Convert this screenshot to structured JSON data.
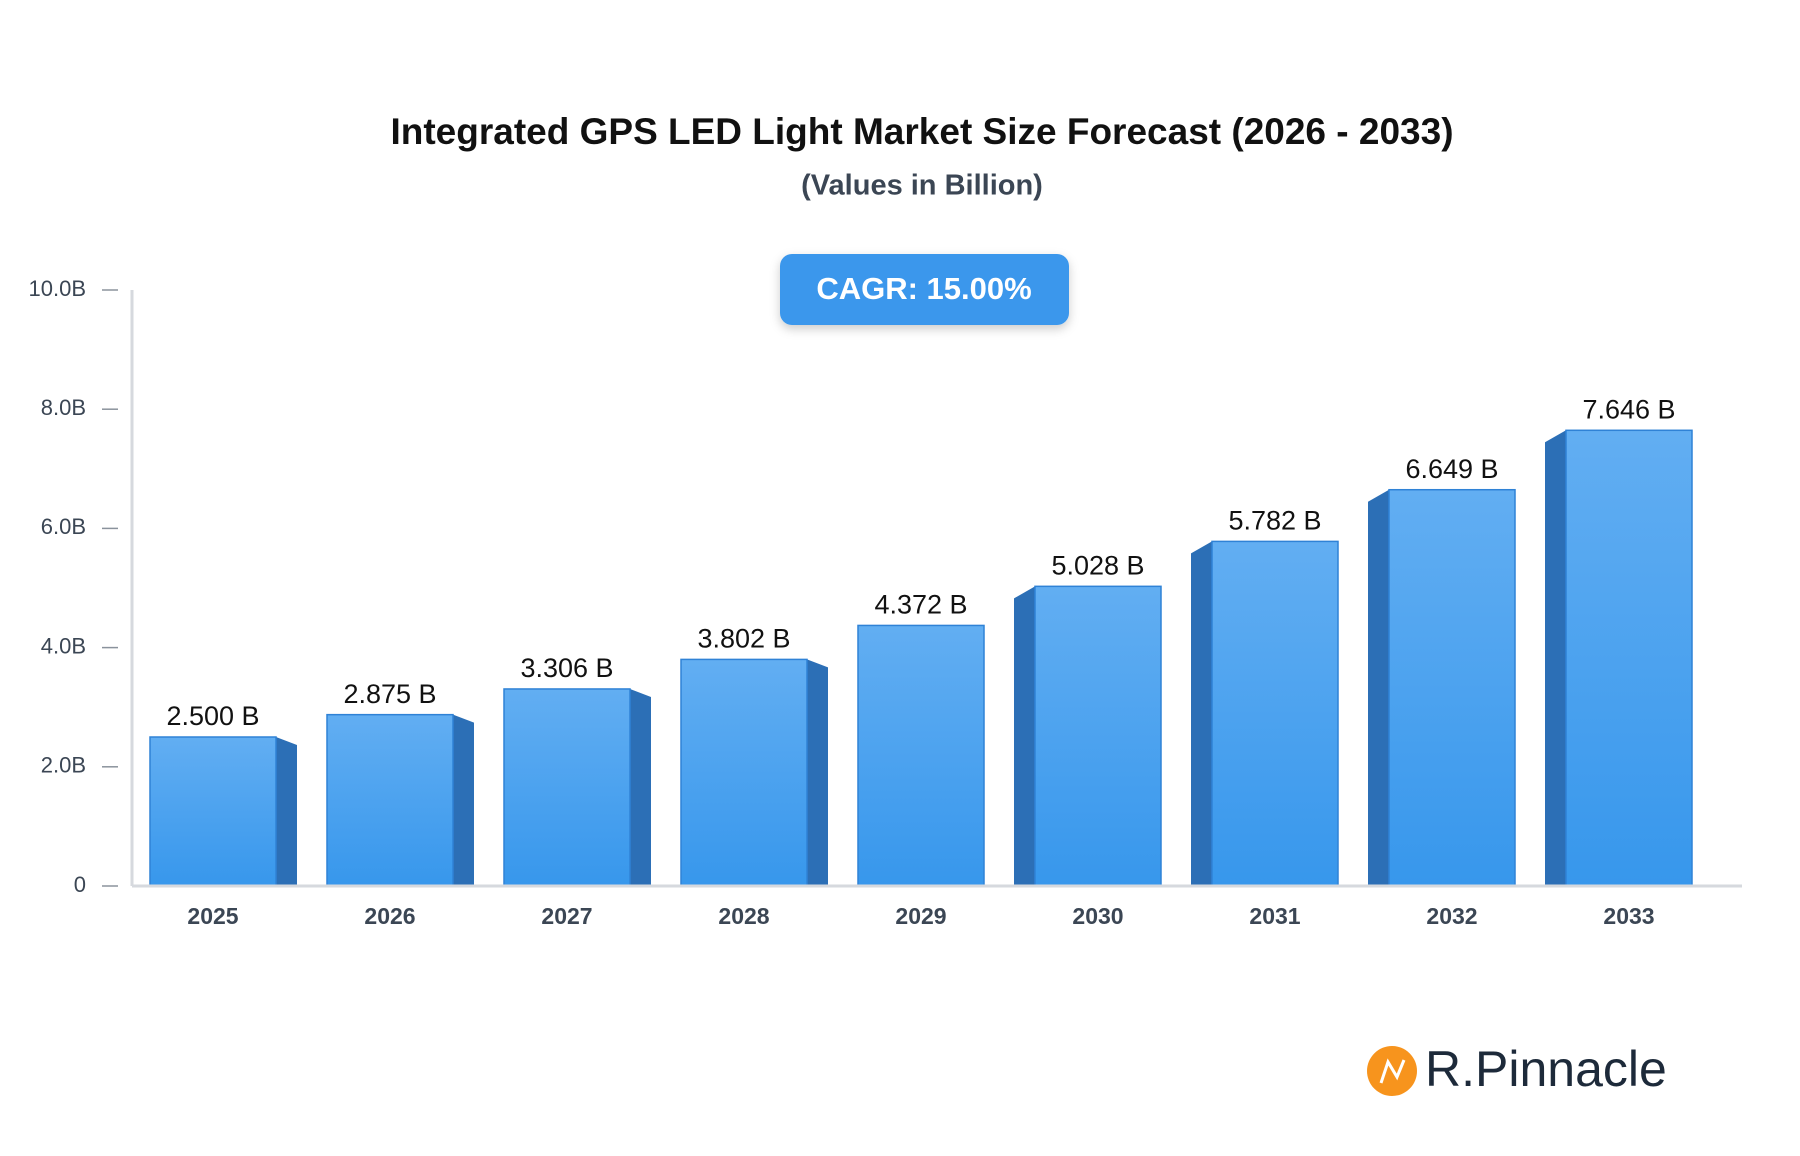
{
  "chart_data": {
    "type": "bar",
    "title": "Integrated GPS LED Light Market Size Forecast (2026 - 2033)",
    "subtitle": "(Values in Billion)",
    "annotation": "CAGR: 15.00%",
    "watermark": "R.Pinnacle",
    "categories": [
      "2025",
      "2026",
      "2027",
      "2028",
      "2029",
      "2030",
      "2031",
      "2032",
      "2033"
    ],
    "values": [
      2.5,
      2.875,
      3.306,
      3.802,
      4.372,
      5.028,
      5.782,
      6.649,
      7.646
    ],
    "value_labels": [
      "2.500 B",
      "2.875 B",
      "3.306 B",
      "3.802 B",
      "4.372 B",
      "5.028 B",
      "5.782 B",
      "6.649 B",
      "7.646 B"
    ],
    "color": "#4aa2ef",
    "ylim": [
      0,
      10
    ],
    "yticks": [
      0,
      {
        "value": 2,
        "label": "2.0B"
      },
      {
        "value": 4,
        "label": "4.0B"
      },
      {
        "value": 6,
        "label": "6.0B"
      },
      {
        "value": 8,
        "label": "8.0B"
      },
      {
        "value": 10,
        "label": "10.0B"
      }
    ],
    "grid": false
  }
}
